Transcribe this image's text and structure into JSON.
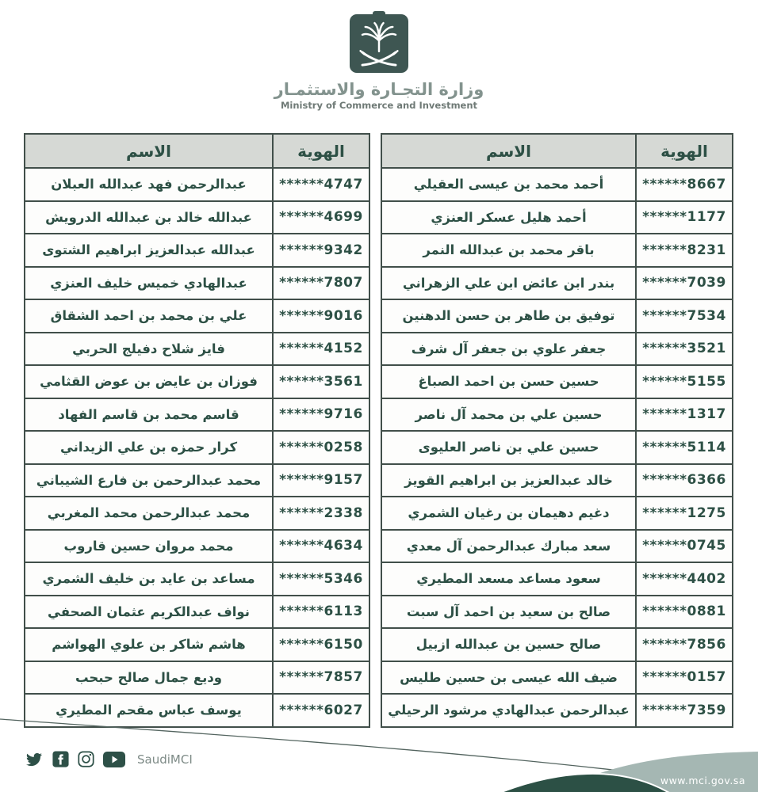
{
  "header": {
    "logo_emblem": "saudi-palm-and-crossed-swords",
    "ministry_name_ar": "وزارة التجـارة والاستثمـار",
    "ministry_name_en": "Ministry of Commerce and Investment"
  },
  "table_headers": {
    "name": "الاسم",
    "id": "الهوية"
  },
  "tables": {
    "right": {
      "rows": [
        {
          "name": "أحمد محمد بن عيسى العقيلي",
          "id": "******8667"
        },
        {
          "name": "أحمد هليل عسكر العنزي",
          "id": "******1177"
        },
        {
          "name": "باقر محمد بن عبدالله النمر",
          "id": "******8231"
        },
        {
          "name": "بندر ابن عائض ابن علي الزهراني",
          "id": "******7039"
        },
        {
          "name": "توفيق بن طاهر بن حسن الدهنين",
          "id": "******7534"
        },
        {
          "name": "جعفر علوي بن جعفر آل شرف",
          "id": "******3521"
        },
        {
          "name": "حسين حسن بن احمد الصباغ",
          "id": "******5155"
        },
        {
          "name": "حسين علي بن محمد آل ناصر",
          "id": "******1317"
        },
        {
          "name": "حسين علي بن ناصر العليوى",
          "id": "******5114"
        },
        {
          "name": "خالد عبدالعزيز بن ابراهيم القويز",
          "id": "******6366"
        },
        {
          "name": "دغيم دهيمان بن رغيان الشمري",
          "id": "******1275"
        },
        {
          "name": "سعد مبارك عبدالرحمن آل معدي",
          "id": "******0745"
        },
        {
          "name": "سعود مساعد مسعد المطيري",
          "id": "******4402"
        },
        {
          "name": "صالح بن سعيد بن احمد آل سبت",
          "id": "******0881"
        },
        {
          "name": "صالح حسين بن عبدالله ازبيل",
          "id": "******7856"
        },
        {
          "name": "ضيف الله عيسى بن حسين طليس",
          "id": "******0157"
        },
        {
          "name": "عبدالرحمن عبدالهادي مرشود الرحيلي",
          "id": "******7359"
        }
      ]
    },
    "left": {
      "rows": [
        {
          "name": "عبدالرحمن فهد عبدالله العبلان",
          "id": "******4747"
        },
        {
          "name": "عبدالله خالد بن عبدالله الدرويش",
          "id": "******4699"
        },
        {
          "name": "عبدالله عبدالعزيز ابراهيم الشتوى",
          "id": "******9342"
        },
        {
          "name": "عبدالهادي خميس خليف العنزي",
          "id": "******7807"
        },
        {
          "name": "علي بن محمد بن احمد الشقاق",
          "id": "******9016"
        },
        {
          "name": "فايز شلاح دفيلج الحربي",
          "id": "******4152"
        },
        {
          "name": "فوزان بن عايض بن عوض القثامي",
          "id": "******3561"
        },
        {
          "name": "قاسم محمد بن قاسم الفهاد",
          "id": "******9716"
        },
        {
          "name": "كرار حمزه بن علي الزيداني",
          "id": "******0258"
        },
        {
          "name": "محمد عبدالرحمن بن فارع الشيباني",
          "id": "******9157"
        },
        {
          "name": "محمد عبدالرحمن محمد المغربي",
          "id": "******2338"
        },
        {
          "name": "محمد مروان حسين قاروب",
          "id": "******4634"
        },
        {
          "name": "مساعد بن عايد بن خليف الشمري",
          "id": "******5346"
        },
        {
          "name": "نواف عبدالكريم عثمان الصحفي",
          "id": "******6113"
        },
        {
          "name": "هاشم شاكر بن علوي الهواشم",
          "id": "******6150"
        },
        {
          "name": "وديع جمال صالح حبحب",
          "id": "******7857"
        },
        {
          "name": "يوسف عباس مقحم المطيري",
          "id": "******6027"
        }
      ]
    }
  },
  "footer": {
    "icons": [
      "twitter-icon",
      "facebook-icon",
      "instagram-icon",
      "youtube-icon"
    ],
    "social_handle": "SaudiMCI",
    "website": "www.mci.gov.sa"
  },
  "colors": {
    "logo_bg": "#3e5652",
    "text_green": "#2d5045",
    "table_border": "#414f4a",
    "header_cell_bg": "#d6d9d5",
    "wave_light": "#a5b7b3",
    "wave_dark": "#2c5045",
    "icon_green": "#2d5047"
  }
}
